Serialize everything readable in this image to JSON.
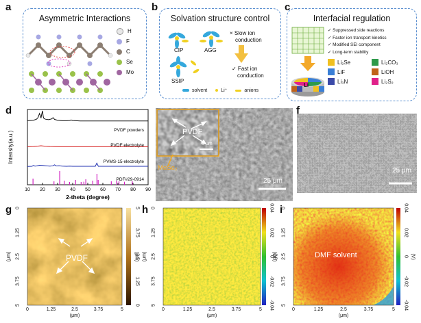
{
  "panels": {
    "a": {
      "label": "a",
      "title": "Asymmetric Interactions",
      "legend": [
        "H",
        "F",
        "C",
        "Se",
        "Mo"
      ],
      "legend_colors": [
        "#e8e8e8",
        "#a7a8e3",
        "#8c7e72",
        "#9ac24a",
        "#a066a0"
      ]
    },
    "b": {
      "label": "b",
      "title": "Solvation structure control",
      "cip": "CIP",
      "agg": "AGG",
      "ssip": "SSIP",
      "slow": [
        "× Slow ion",
        "conduction"
      ],
      "fast": [
        "✓ Fast ion",
        "conduction"
      ],
      "legend": {
        "solvent": "solvent",
        "li": "Li⁺",
        "anions": "anions"
      }
    },
    "c": {
      "label": "c",
      "title": "Interfacial regulation",
      "checks": [
        "✓ Suppressed side reactions",
        "✓ Faster ion transport kinetics",
        "✓ Modified SEI component",
        "✓ Long-term stability"
      ],
      "li_text": "Li",
      "legend": [
        {
          "name": "Li₂Se",
          "color": "#f0c020"
        },
        {
          "name": "Li₂CO₃",
          "color": "#2e9a4a"
        },
        {
          "name": "LiF",
          "color": "#3a7fd6"
        },
        {
          "name": "LiOH",
          "color": "#c0621a"
        },
        {
          "name": "Li₃N",
          "color": "#3b4aa8"
        },
        {
          "name": "Li₂S₂",
          "color": "#e0208a"
        }
      ]
    },
    "d": {
      "label": "d",
      "ylabel": "Intensity(a.u.)",
      "xlabel": "2-theta (degree)",
      "xticks": [
        "10",
        "20",
        "30",
        "40",
        "50",
        "60",
        "70",
        "80",
        "90"
      ],
      "series_labels": [
        "PVDF powders",
        "PVDF electrolyte",
        "PVMS-15 electrolyte",
        "PDF#29-0914"
      ]
    },
    "e": {
      "label": "e",
      "inset_label": "PVDF",
      "inset_scale": "5 μm",
      "mose2": "MoSe₂",
      "scale": "25 μm"
    },
    "f": {
      "label": "f",
      "scale": "25 μm"
    },
    "g": {
      "label": "g",
      "annot": "PVDF",
      "yticks": [
        "0",
        "1.25",
        "2.5",
        "3.75",
        "5"
      ],
      "xticks": [
        "0",
        "1.25",
        "2.5",
        "3.75",
        "5"
      ],
      "axis_unit": "(μm)",
      "cb_ticks": [
        "5",
        "3.75",
        "2.5",
        "1.25",
        "0"
      ],
      "cb_unit": "(μm)"
    },
    "h": {
      "label": "h",
      "yticks": [
        "0",
        "1.25",
        "2.5",
        "3.75",
        "5"
      ],
      "xticks": [
        "0",
        "1.25",
        "2.5",
        "3.75",
        "5"
      ],
      "axis_unit": "(μm)",
      "cb_ticks": [
        "0.04",
        "0.02",
        "0",
        "-0.02",
        "-0.04"
      ],
      "cb_unit": "(V)"
    },
    "i": {
      "label": "i",
      "annot": "DMF solvent",
      "yticks": [
        "0",
        "1.25",
        "2.5",
        "3.75",
        "5"
      ],
      "xticks": [
        "0",
        "1.25",
        "2.5",
        "3.75",
        "5"
      ],
      "axis_unit": "(μm)",
      "cb_ticks": [
        "0.04",
        "0.02",
        "0",
        "-0.02",
        "-0.04"
      ],
      "cb_unit": "(V)"
    }
  },
  "chart_data": {
    "type": "line",
    "title": "",
    "xlabel": "2-theta (degree)",
    "ylabel": "Intensity(a.u.)",
    "xlim": [
      10,
      90
    ],
    "series": [
      {
        "name": "PVDF powders",
        "color": "#111111",
        "x": [
          10,
          14,
          16,
          17,
          18,
          18.5,
          19,
          19.5,
          20,
          20.5,
          21,
          22,
          24,
          26,
          27,
          28,
          30,
          33,
          36,
          38,
          39,
          40,
          42,
          45,
          50,
          55,
          60,
          65,
          70,
          75,
          80,
          85,
          90
        ],
        "y": [
          0.62,
          0.64,
          0.68,
          0.74,
          0.9,
          0.82,
          0.72,
          0.88,
          1.0,
          0.78,
          0.7,
          0.68,
          0.66,
          0.69,
          0.74,
          0.67,
          0.64,
          0.62,
          0.62,
          0.63,
          0.65,
          0.63,
          0.62,
          0.61,
          0.61,
          0.61,
          0.61,
          0.61,
          0.61,
          0.61,
          0.61,
          0.61,
          0.61
        ]
      },
      {
        "name": "PVDF electrolyte",
        "color": "#d62020",
        "x": [
          10,
          14,
          17,
          19,
          20,
          22,
          25,
          28,
          32,
          40,
          50,
          60,
          70,
          80,
          90
        ],
        "y": [
          0.42,
          0.44,
          0.47,
          0.5,
          0.49,
          0.46,
          0.44,
          0.43,
          0.42,
          0.42,
          0.42,
          0.42,
          0.42,
          0.42,
          0.42
        ]
      },
      {
        "name": "PVMS-15 electrolyte",
        "color": "#2030b0",
        "x": [
          10,
          13,
          14,
          15,
          16,
          18,
          20,
          22,
          25,
          27,
          28,
          29,
          31,
          33,
          36,
          38,
          40,
          45,
          50,
          53,
          55,
          56,
          57,
          60,
          65,
          70,
          75,
          80,
          85,
          90
        ],
        "y": [
          0.2,
          0.21,
          0.26,
          0.22,
          0.23,
          0.27,
          0.26,
          0.24,
          0.22,
          0.24,
          0.3,
          0.23,
          0.24,
          0.22,
          0.21,
          0.22,
          0.21,
          0.21,
          0.21,
          0.21,
          0.21,
          0.4,
          0.21,
          0.21,
          0.21,
          0.21,
          0.21,
          0.21,
          0.21,
          0.21
        ]
      },
      {
        "name": "PDF#29-0914",
        "color": "#d020c0",
        "type": "stick",
        "x": [
          13.7,
          27.6,
          31.4,
          34.4,
          37.9,
          41.9,
          45.6,
          47.4,
          48.7,
          53.3,
          56.1,
          56.9,
          65.6,
          69.1,
          70.7,
          74.3,
          79.5
        ],
        "y": [
          0.45,
          0.25,
          1.0,
          0.3,
          0.2,
          0.35,
          0.2,
          0.22,
          0.4,
          0.3,
          0.8,
          0.35,
          0.25,
          0.3,
          0.25,
          0.22,
          0.25
        ]
      }
    ]
  }
}
